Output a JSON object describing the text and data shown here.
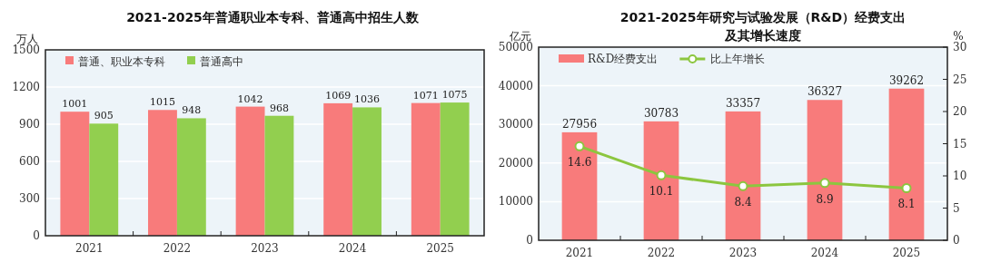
{
  "chart_data": [
    {
      "type": "bar",
      "title": "2021-2025年普通职业本专科、普通高中招生人数",
      "ylabel": "万人",
      "categories": [
        "2021",
        "2022",
        "2023",
        "2024",
        "2025"
      ],
      "series": [
        {
          "name": "普通、职业本专科",
          "color": "#f87b7b",
          "values": [
            1001,
            1015,
            1042,
            1069,
            1071
          ]
        },
        {
          "name": "普通高中",
          "color": "#92cf4f",
          "values": [
            905,
            948,
            968,
            1036,
            1075
          ]
        }
      ],
      "ylim": [
        0,
        1500
      ],
      "yticks": [
        0,
        300,
        600,
        900,
        1200,
        1500
      ],
      "data_labels": true,
      "legend": "top left",
      "grid": "y"
    },
    {
      "type": "bar",
      "title": "2021-2025年研究与试验发展（R&D）经费支出及其增长速度",
      "ylabel": "亿元",
      "y2label": "%",
      "categories": [
        "2021",
        "2022",
        "2023",
        "2024",
        "2025"
      ],
      "series": [
        {
          "name": "R&D经费支出",
          "color": "#f87b7b",
          "values": [
            27956,
            30783,
            33357,
            36327,
            39262
          ]
        },
        {
          "name": "比上年增长",
          "type": "line",
          "axis": "y2",
          "color": "#8cc63f",
          "values": [
            14.6,
            10.1,
            8.4,
            8.9,
            8.1
          ]
        }
      ],
      "ylim": [
        0,
        50000
      ],
      "yticks": [
        0,
        10000,
        20000,
        30000,
        40000,
        50000
      ],
      "y2lim": [
        0,
        30
      ],
      "y2ticks": [
        0,
        5,
        10,
        15,
        20,
        25,
        30
      ],
      "marker": "circle",
      "data_labels": true,
      "legend": "top left",
      "grid": "y"
    }
  ]
}
